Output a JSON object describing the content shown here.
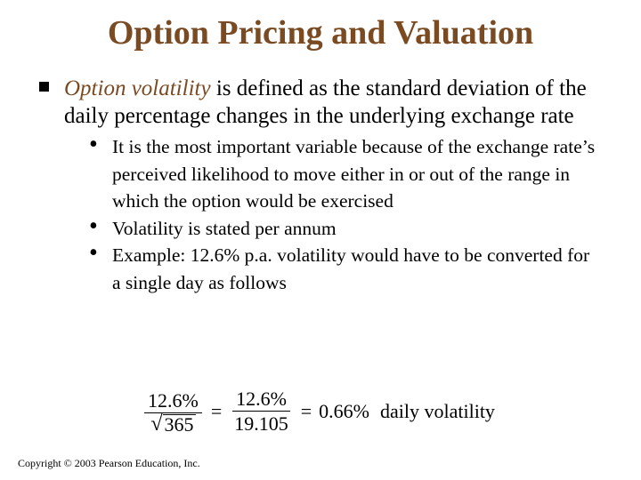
{
  "title": "Option Pricing and Valuation",
  "bullet": {
    "lead": "Option volatility",
    "text": " is defined as the standard deviation of the daily percentage changes in the underlying exchange rate"
  },
  "sub_bullets": [
    "It is the most important variable because of the exchange rate’s perceived likelihood to move either in or out of the range in which the option would be exercised",
    "Volatility is stated per annum",
    "Example: 12.6% p.a. volatility would have to be converted for a single day as follows"
  ],
  "formula": {
    "num1": "12.6%",
    "den1_symbol": "√",
    "den1": "365",
    "eq1": "=",
    "num2": "12.6%",
    "den2": "19.105",
    "eq2": "=",
    "result": "0.66%",
    "label": "daily volatility"
  },
  "copyright": "Copyright © 2003 Pearson Education, Inc."
}
